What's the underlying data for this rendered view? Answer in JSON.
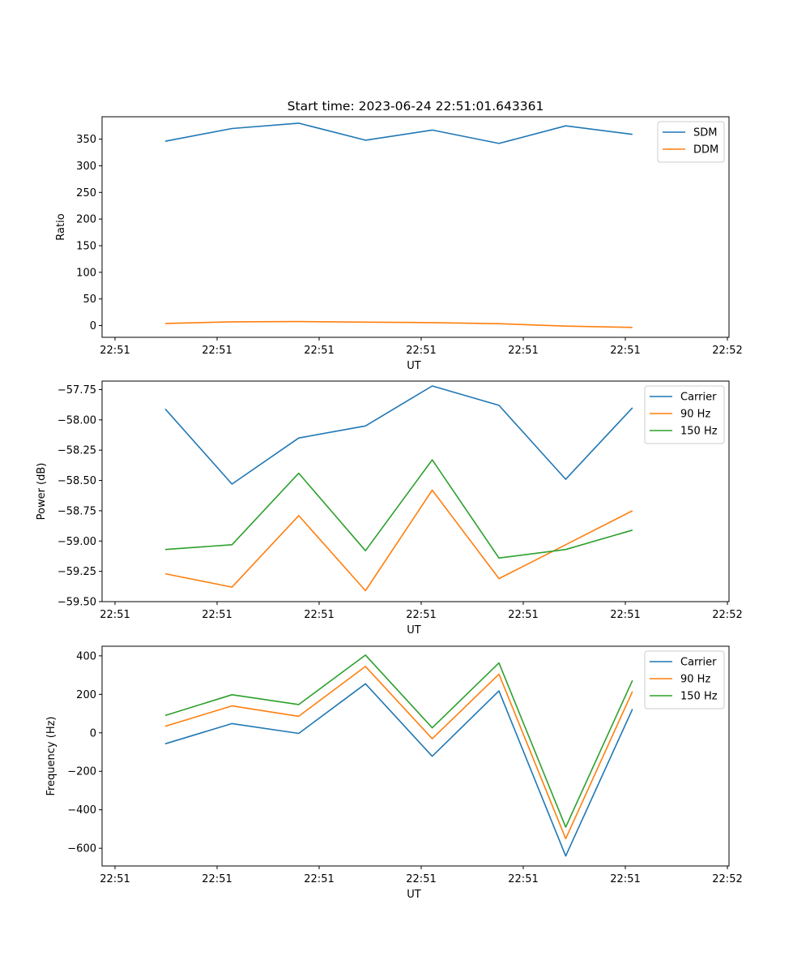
{
  "figure_title": "Start time: 2023-06-24 22:51:01.643361",
  "chart_data": [
    {
      "type": "line",
      "title": "Start time: 2023-06-24 22:51:01.643361",
      "xlabel": "UT",
      "ylabel": "Ratio",
      "x_tick_labels": [
        "22:51",
        "22:51",
        "22:51",
        "22:51",
        "22:51",
        "22:51",
        "22:52"
      ],
      "yticks": [
        0,
        50,
        100,
        150,
        200,
        250,
        300,
        350
      ],
      "ylim": [
        -22,
        392
      ],
      "legend_position": "upper right",
      "x": [
        1,
        2,
        3,
        4,
        5,
        6,
        7,
        8
      ],
      "series": [
        {
          "name": "SDM",
          "color": "#1f77b4",
          "values": [
            346,
            370,
            380,
            348,
            367,
            342,
            375,
            359
          ]
        },
        {
          "name": "DDM",
          "color": "#ff7f0e",
          "values": [
            4,
            7,
            7.5,
            6.5,
            5.5,
            3.5,
            -1,
            -3.5
          ]
        }
      ]
    },
    {
      "type": "line",
      "xlabel": "UT",
      "ylabel": "Power (dB)",
      "x_tick_labels": [
        "22:51",
        "22:51",
        "22:51",
        "22:51",
        "22:51",
        "22:51",
        "22:52"
      ],
      "yticks": [
        -59.5,
        -59.25,
        -59.0,
        -58.75,
        -58.5,
        -58.25,
        -58.0,
        -57.75
      ],
      "ytick_labels": [
        "−59.50",
        "−59.25",
        "−59.00",
        "−58.75",
        "−58.50",
        "−58.25",
        "−58.00",
        "−57.75"
      ],
      "ylim": [
        -59.5,
        -57.68
      ],
      "legend_position": "upper right",
      "x": [
        1,
        2,
        3,
        4,
        5,
        6,
        7,
        8
      ],
      "series": [
        {
          "name": "Carrier",
          "color": "#1f77b4",
          "values": [
            -57.91,
            -58.53,
            -58.15,
            -58.05,
            -57.72,
            -57.88,
            -58.49,
            -57.9
          ]
        },
        {
          "name": "90 Hz",
          "color": "#ff7f0e",
          "values": [
            -59.27,
            -59.38,
            -58.79,
            -59.41,
            -58.58,
            -59.31,
            -59.03,
            -58.75
          ]
        },
        {
          "name": "150 Hz",
          "color": "#2ca02c",
          "values": [
            -59.07,
            -59.03,
            -58.44,
            -59.08,
            -58.33,
            -59.14,
            -59.07,
            -58.91
          ]
        }
      ]
    },
    {
      "type": "line",
      "xlabel": "UT",
      "ylabel": "Frequency (Hz)",
      "x_tick_labels": [
        "22:51",
        "22:51",
        "22:51",
        "22:51",
        "22:51",
        "22:51",
        "22:52"
      ],
      "yticks": [
        -600,
        -400,
        -200,
        0,
        200,
        400
      ],
      "ytick_labels": [
        "−600",
        "−400",
        "−200",
        "0",
        "200",
        "400"
      ],
      "ylim": [
        -692,
        450
      ],
      "legend_position": "upper right",
      "x": [
        1,
        2,
        3,
        4,
        5,
        6,
        7,
        8
      ],
      "series": [
        {
          "name": "Carrier",
          "color": "#1f77b4",
          "values": [
            -57,
            48,
            -3,
            255,
            -122,
            218,
            -640,
            123
          ]
        },
        {
          "name": "90 Hz",
          "color": "#ff7f0e",
          "values": [
            34,
            140,
            86,
            345,
            -31,
            305,
            -550,
            215
          ]
        },
        {
          "name": "150 Hz",
          "color": "#2ca02c",
          "values": [
            90,
            198,
            147,
            404,
            26,
            363,
            -490,
            272
          ]
        }
      ]
    }
  ]
}
